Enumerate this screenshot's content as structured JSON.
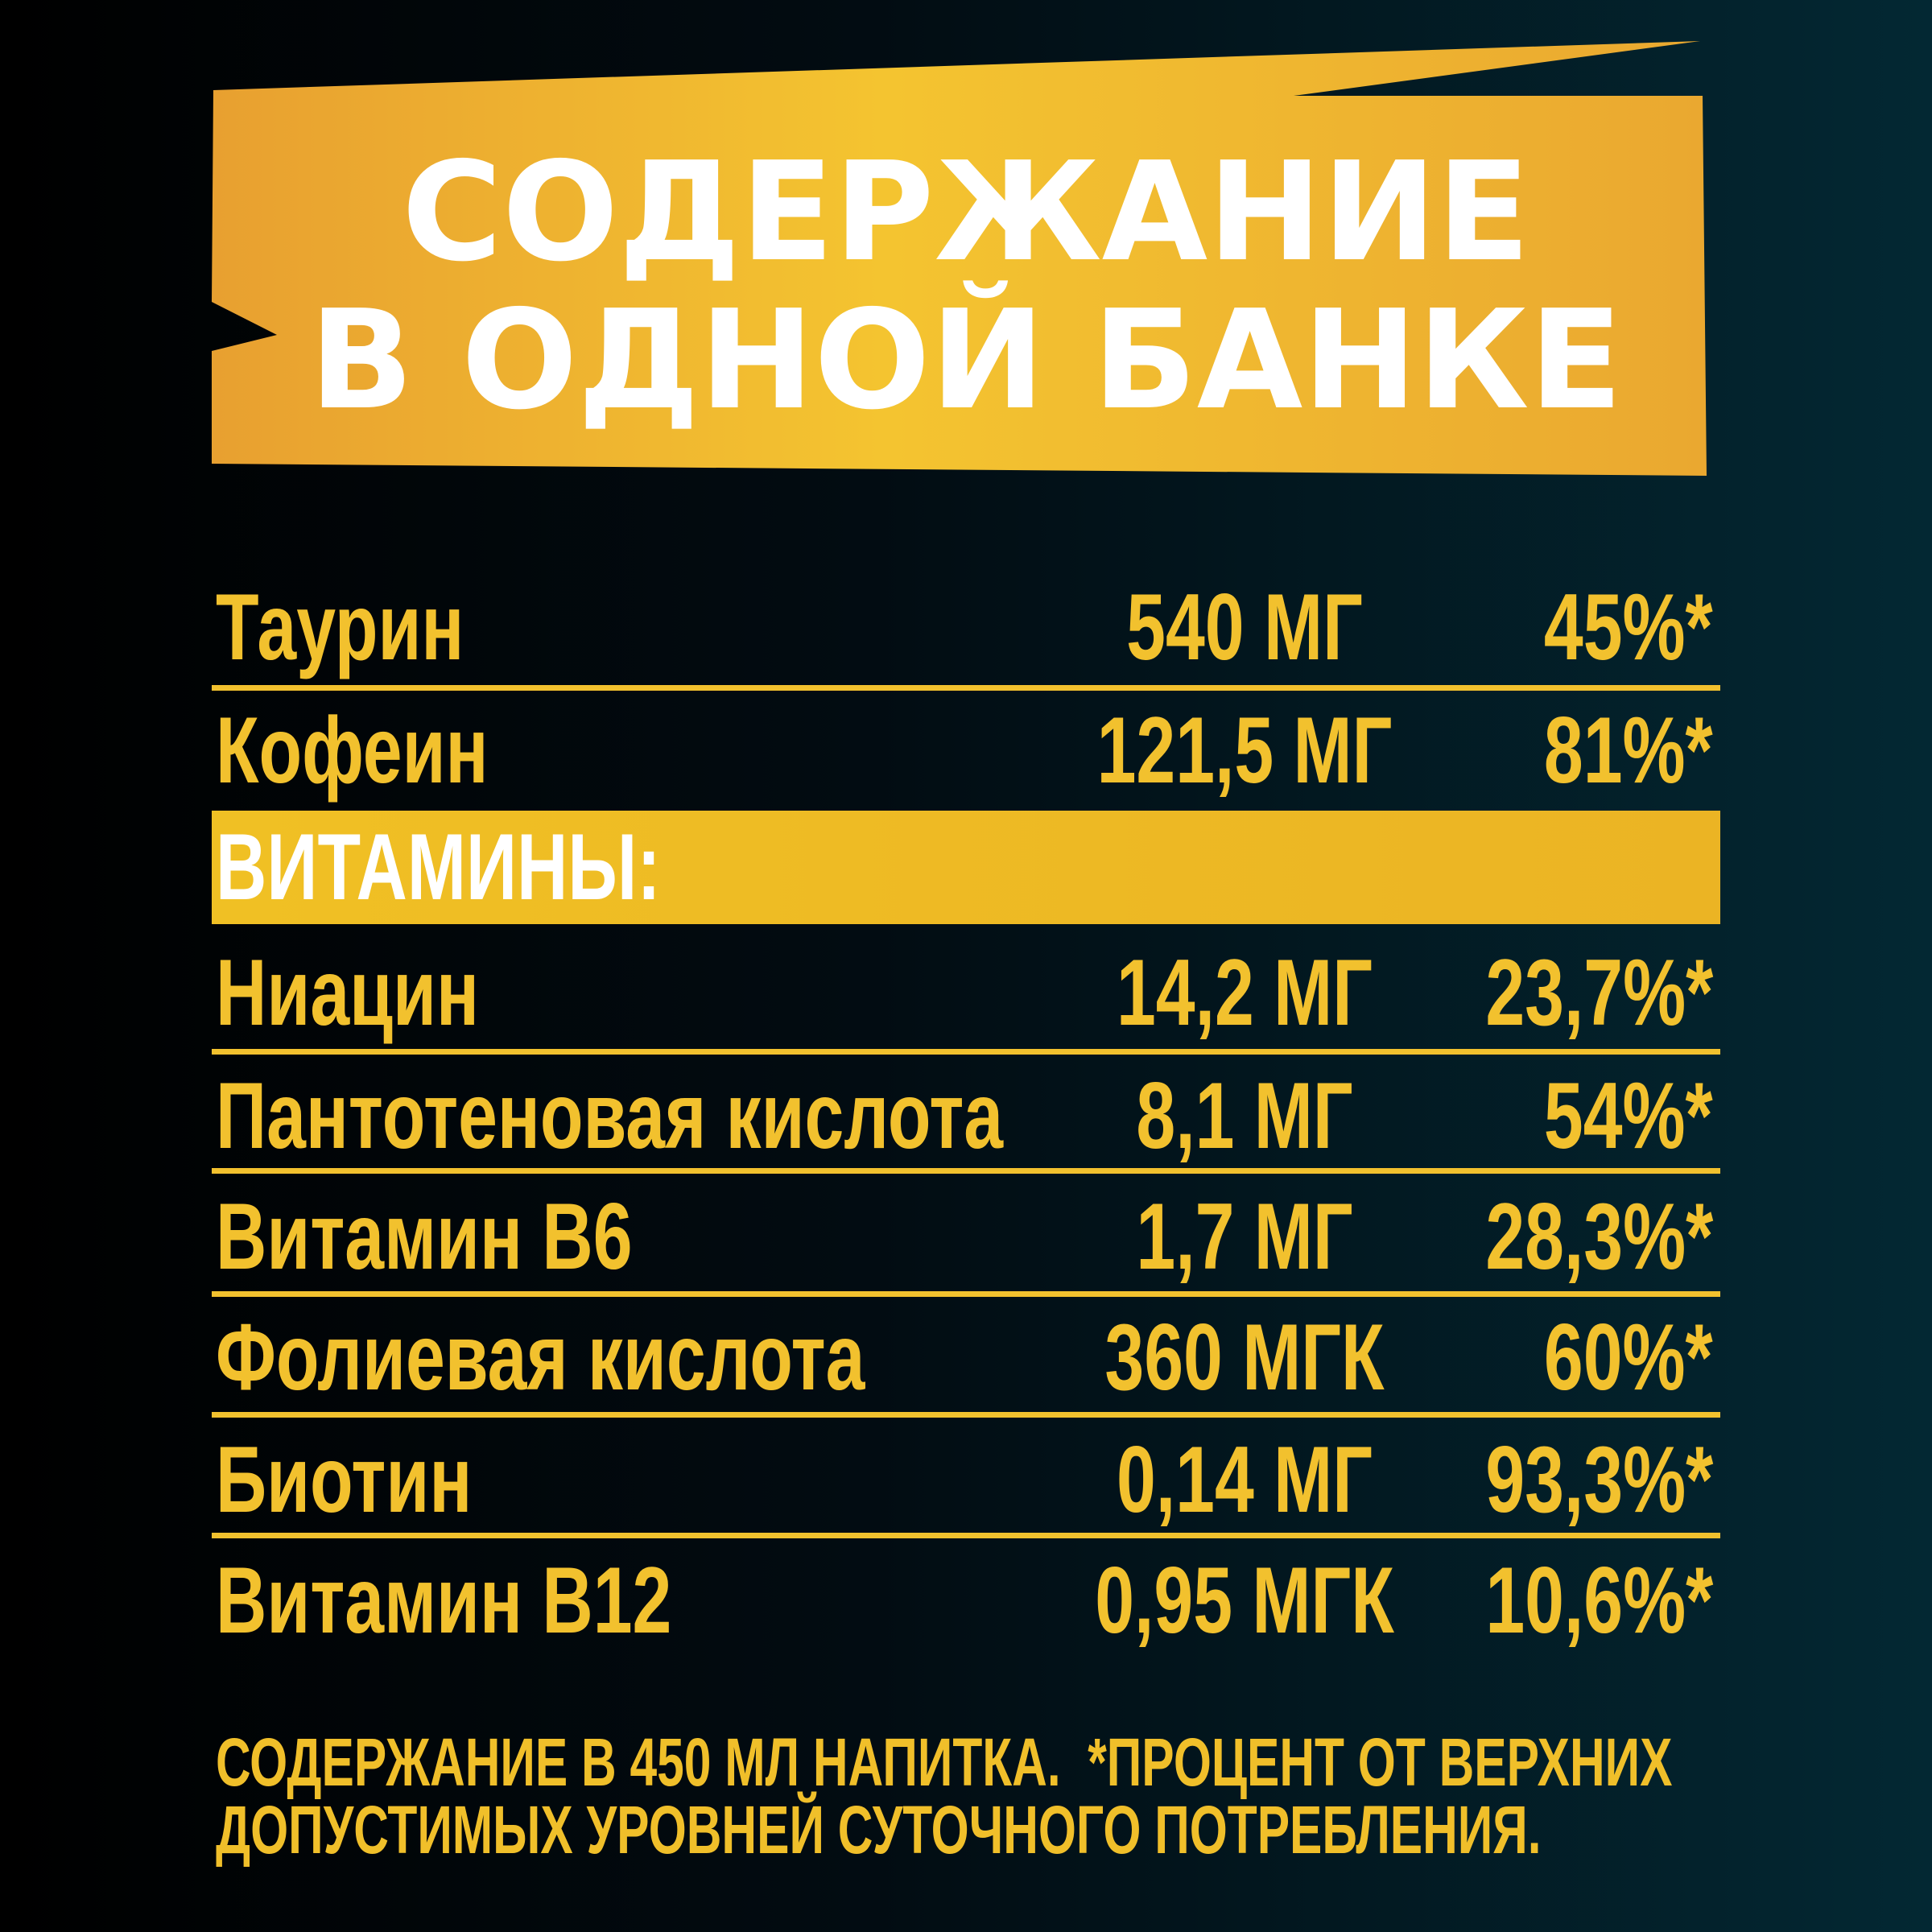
{
  "colors": {
    "accent_yellow": "#f2c12e",
    "banner_orange": "#e8a030",
    "banner_yellow": "#f4c430",
    "background_dark": "#000000",
    "background_teal": "#032833"
  },
  "header": {
    "line1": "СОДЕРЖАНИЕ",
    "line2": "В ОДНОЙ БАНКЕ"
  },
  "rows_top": [
    {
      "name": "Таурин",
      "amount": "540 МГ",
      "percent": "45%*"
    },
    {
      "name": "Кофеин",
      "amount": "121,5 МГ",
      "percent": "81%*"
    }
  ],
  "vitamins_label": "ВИТАМИНЫ:",
  "vitamins": [
    {
      "name": "Ниацин",
      "amount": "14,2 МГ",
      "percent": "23,7%*"
    },
    {
      "name": "Пантотеновая кислота",
      "amount": "8,1 МГ",
      "percent": "54%*"
    },
    {
      "name": "Витамин B6",
      "amount": "1,7 МГ",
      "percent": "28,3%*"
    },
    {
      "name": "Фолиевая кислота",
      "amount": "360 МГК",
      "percent": "60%*"
    },
    {
      "name": "Биотин",
      "amount": "0,14 МГ",
      "percent": "93,3%*"
    },
    {
      "name": "Витамин B12",
      "amount": "0,95 МГК",
      "percent": "10,6%*"
    }
  ],
  "footer": {
    "line1": "СОДЕРЖАНИЕ В 450 МЛ НАПИТКА.  *ПРОЦЕНТ ОТ ВЕРХНИХ",
    "line2": "ДОПУСТИМЫХ УРОВНЕЙ СУТОЧНОГО ПОТРЕБЛЕНИЯ."
  }
}
